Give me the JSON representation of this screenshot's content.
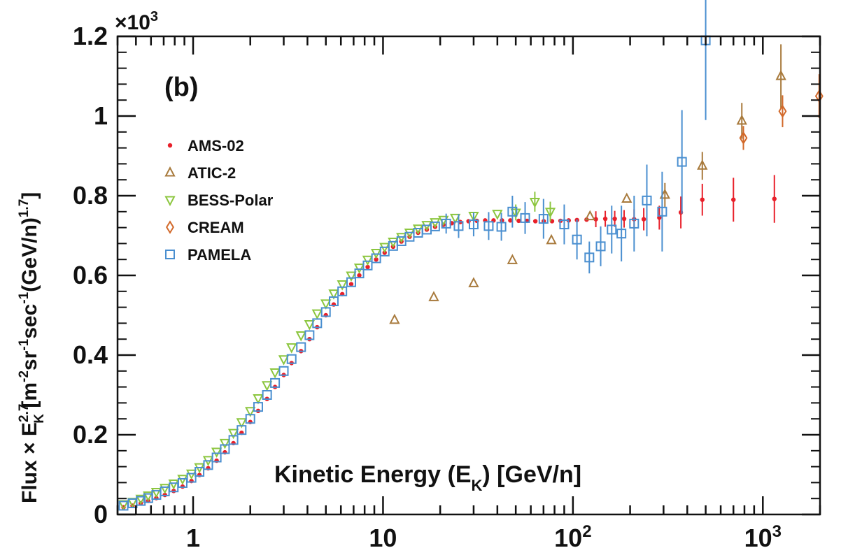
{
  "chart_data": {
    "type": "scatter",
    "panel_label": "(b)",
    "x_scale": "log",
    "xlim": [
      0.4,
      2000
    ],
    "ylim": [
      0,
      1.2
    ],
    "y_multiplier": "×10",
    "y_multiplier_exp": "3",
    "x_ticks": [
      {
        "value": 1,
        "base": "1",
        "exp": ""
      },
      {
        "value": 10,
        "base": "10",
        "exp": ""
      },
      {
        "value": 100,
        "base": "10",
        "exp": "2"
      },
      {
        "value": 1000,
        "base": "10",
        "exp": "3"
      }
    ],
    "y_ticks": [
      {
        "value": 0,
        "label": "0"
      },
      {
        "value": 0.2,
        "label": "0.2"
      },
      {
        "value": 0.4,
        "label": "0.4"
      },
      {
        "value": 0.6,
        "label": "0.6"
      },
      {
        "value": 0.8,
        "label": "0.8"
      },
      {
        "value": 1.0,
        "label": "1"
      },
      {
        "value": 1.2,
        "label": "1.2"
      }
    ],
    "xlabel": {
      "main": "Kinetic Energy (E",
      "sub": "K",
      "tail": ")  [GeV/n]"
    },
    "ylabel": {
      "pre": "Flux × E",
      "sup": "2.7",
      "sub": "K",
      "unit_a": " [m",
      "e1": "-2",
      "unit_b": "sr",
      "e2": "-1",
      "unit_c": "sec",
      "e3": "-1",
      "unit_d": "(GeV/n)",
      "e4": "1.7",
      "unit_e": "]"
    },
    "series": [
      {
        "name": "AMS-02",
        "marker": "dot",
        "color": "#e8202a",
        "points": [
          [
            0.43,
            0.018
          ],
          [
            0.48,
            0.022
          ],
          [
            0.53,
            0.028
          ],
          [
            0.58,
            0.034
          ],
          [
            0.64,
            0.041
          ],
          [
            0.71,
            0.049
          ],
          [
            0.79,
            0.059
          ],
          [
            0.88,
            0.07
          ],
          [
            0.98,
            0.084
          ],
          [
            1.08,
            0.099
          ],
          [
            1.2,
            0.116
          ],
          [
            1.33,
            0.135
          ],
          [
            1.47,
            0.156
          ],
          [
            1.63,
            0.179
          ],
          [
            1.8,
            0.205
          ],
          [
            2.0,
            0.232
          ],
          [
            2.2,
            0.26
          ],
          [
            2.45,
            0.29
          ],
          [
            2.7,
            0.32
          ],
          [
            3.0,
            0.35
          ],
          [
            3.3,
            0.38
          ],
          [
            3.7,
            0.41
          ],
          [
            4.1,
            0.44
          ],
          [
            4.5,
            0.47
          ],
          [
            5.0,
            0.5
          ],
          [
            5.5,
            0.527
          ],
          [
            6.1,
            0.553
          ],
          [
            6.8,
            0.578
          ],
          [
            7.5,
            0.6
          ],
          [
            8.3,
            0.621
          ],
          [
            9.2,
            0.64
          ],
          [
            10.2,
            0.657
          ],
          [
            11.3,
            0.672
          ],
          [
            12.5,
            0.685
          ],
          [
            13.8,
            0.697
          ],
          [
            15.3,
            0.707
          ],
          [
            17,
            0.715
          ],
          [
            18.8,
            0.722
          ],
          [
            20.8,
            0.727
          ],
          [
            23,
            0.731
          ],
          [
            25.5,
            0.734
          ],
          [
            28.2,
            0.736
          ],
          [
            31.2,
            0.737
          ],
          [
            34.5,
            0.738
          ],
          [
            38.2,
            0.738
          ],
          [
            42.3,
            0.738
          ],
          [
            46.8,
            0.738
          ],
          [
            51.8,
            0.737
          ],
          [
            57.3,
            0.737
          ],
          [
            63.4,
            0.736
          ],
          [
            70.2,
            0.736
          ],
          [
            77.6,
            0.736
          ],
          [
            86,
            0.737
          ],
          [
            95,
            0.738
          ],
          [
            105,
            0.739
          ],
          [
            118,
            0.74
          ],
          [
            132,
            0.741
          ],
          [
            148,
            0.742
          ],
          [
            166,
            0.742
          ],
          [
            186,
            0.742
          ],
          [
            210,
            0.741
          ],
          [
            236,
            0.741
          ],
          [
            285,
            0.745
          ],
          [
            370,
            0.758
          ],
          [
            480,
            0.79
          ],
          [
            700,
            0.79
          ],
          [
            1150,
            0.792
          ]
        ],
        "errors": [
          [
            132,
            0.02
          ],
          [
            148,
            0.02
          ],
          [
            166,
            0.02
          ],
          [
            186,
            0.022
          ],
          [
            210,
            0.025
          ],
          [
            236,
            0.028
          ],
          [
            285,
            0.03
          ],
          [
            370,
            0.04
          ],
          [
            480,
            0.04
          ],
          [
            700,
            0.055
          ],
          [
            1150,
            0.06
          ]
        ]
      },
      {
        "name": "ATIC-2",
        "marker": "triangle-up",
        "color": "#a87a3c",
        "points": [
          [
            11.5,
            0.488
          ],
          [
            18.5,
            0.545
          ],
          [
            30,
            0.58
          ],
          [
            48,
            0.638
          ],
          [
            77,
            0.688
          ],
          [
            123,
            0.748
          ],
          [
            192,
            0.792
          ],
          [
            305,
            0.802
          ],
          [
            480,
            0.875
          ],
          [
            775,
            0.988
          ],
          [
            1245,
            1.1
          ]
        ],
        "errors": [
          [
            305,
            0.03
          ],
          [
            480,
            0.035
          ],
          [
            775,
            0.045
          ],
          [
            1245,
            0.08
          ]
        ]
      },
      {
        "name": "BESS-Polar",
        "marker": "triangle-down",
        "color": "#8cc63f",
        "points": [
          [
            0.43,
            0.026
          ],
          [
            0.48,
            0.032
          ],
          [
            0.53,
            0.04
          ],
          [
            0.58,
            0.048
          ],
          [
            0.64,
            0.057
          ],
          [
            0.71,
            0.067
          ],
          [
            0.79,
            0.078
          ],
          [
            0.88,
            0.09
          ],
          [
            0.98,
            0.103
          ],
          [
            1.08,
            0.119
          ],
          [
            1.2,
            0.137
          ],
          [
            1.33,
            0.158
          ],
          [
            1.47,
            0.18
          ],
          [
            1.63,
            0.205
          ],
          [
            1.8,
            0.232
          ],
          [
            2.0,
            0.26
          ],
          [
            2.2,
            0.292
          ],
          [
            2.45,
            0.325
          ],
          [
            2.7,
            0.357
          ],
          [
            3.0,
            0.39
          ],
          [
            3.3,
            0.42
          ],
          [
            3.7,
            0.45
          ],
          [
            4.1,
            0.478
          ],
          [
            4.5,
            0.505
          ],
          [
            5.0,
            0.53
          ],
          [
            5.5,
            0.555
          ],
          [
            6.1,
            0.578
          ],
          [
            6.8,
            0.6
          ],
          [
            7.5,
            0.62
          ],
          [
            8.3,
            0.64
          ],
          [
            9.2,
            0.657
          ],
          [
            10.2,
            0.672
          ],
          [
            11.3,
            0.685
          ],
          [
            12.5,
            0.697
          ],
          [
            13.8,
            0.708
          ],
          [
            15.3,
            0.718
          ],
          [
            17,
            0.727
          ],
          [
            18.8,
            0.734
          ],
          [
            20.8,
            0.74
          ],
          [
            24,
            0.745
          ],
          [
            30,
            0.75
          ],
          [
            40,
            0.755
          ],
          [
            50,
            0.758
          ],
          [
            63,
            0.785
          ],
          [
            76,
            0.76
          ]
        ],
        "errors": [
          [
            50,
            0.02
          ],
          [
            63,
            0.025
          ],
          [
            76,
            0.025
          ]
        ]
      },
      {
        "name": "CREAM",
        "marker": "diamond",
        "color": "#d2692a",
        "points": [
          [
            790,
            0.945
          ],
          [
            1270,
            1.012
          ],
          [
            1980,
            1.05
          ]
        ],
        "errors": [
          [
            790,
            0.03
          ],
          [
            1270,
            0.04
          ],
          [
            1980,
            0.055
          ]
        ]
      },
      {
        "name": "PAMELA",
        "marker": "square",
        "color": "#4a8fd0",
        "points": [
          [
            0.43,
            0.022
          ],
          [
            0.48,
            0.028
          ],
          [
            0.53,
            0.034
          ],
          [
            0.58,
            0.041
          ],
          [
            0.64,
            0.049
          ],
          [
            0.71,
            0.058
          ],
          [
            0.79,
            0.068
          ],
          [
            0.88,
            0.079
          ],
          [
            0.98,
            0.092
          ],
          [
            1.08,
            0.107
          ],
          [
            1.2,
            0.124
          ],
          [
            1.33,
            0.143
          ],
          [
            1.47,
            0.164
          ],
          [
            1.63,
            0.187
          ],
          [
            1.8,
            0.212
          ],
          [
            2.0,
            0.24
          ],
          [
            2.2,
            0.27
          ],
          [
            2.45,
            0.3
          ],
          [
            2.7,
            0.33
          ],
          [
            3.0,
            0.36
          ],
          [
            3.3,
            0.39
          ],
          [
            3.7,
            0.42
          ],
          [
            4.1,
            0.45
          ],
          [
            4.5,
            0.48
          ],
          [
            5.0,
            0.508
          ],
          [
            5.5,
            0.535
          ],
          [
            6.1,
            0.56
          ],
          [
            6.8,
            0.583
          ],
          [
            7.5,
            0.605
          ],
          [
            8.3,
            0.625
          ],
          [
            9.2,
            0.643
          ],
          [
            10.2,
            0.66
          ],
          [
            11.3,
            0.674
          ],
          [
            12.5,
            0.686
          ],
          [
            13.8,
            0.697
          ],
          [
            15.3,
            0.707
          ],
          [
            17,
            0.715
          ],
          [
            18.8,
            0.723
          ],
          [
            21.5,
            0.73
          ],
          [
            25,
            0.724
          ],
          [
            30,
            0.728
          ],
          [
            36,
            0.724
          ],
          [
            42,
            0.722
          ],
          [
            48,
            0.76
          ],
          [
            56,
            0.744
          ],
          [
            70,
            0.742
          ],
          [
            90,
            0.728
          ],
          [
            105,
            0.69
          ],
          [
            122,
            0.645
          ],
          [
            140,
            0.673
          ],
          [
            160,
            0.715
          ],
          [
            180,
            0.705
          ],
          [
            210,
            0.73
          ],
          [
            245,
            0.788
          ],
          [
            295,
            0.76
          ],
          [
            375,
            0.885
          ],
          [
            500,
            1.19
          ]
        ],
        "errors": [
          [
            21.5,
            0.025
          ],
          [
            25,
            0.03
          ],
          [
            30,
            0.03
          ],
          [
            36,
            0.035
          ],
          [
            42,
            0.035
          ],
          [
            48,
            0.04
          ],
          [
            56,
            0.04
          ],
          [
            70,
            0.05
          ],
          [
            90,
            0.05
          ],
          [
            105,
            0.05
          ],
          [
            122,
            0.04
          ],
          [
            140,
            0.05
          ],
          [
            160,
            0.06
          ],
          [
            180,
            0.07
          ],
          [
            210,
            0.07
          ],
          [
            245,
            0.09
          ],
          [
            295,
            0.1
          ],
          [
            375,
            0.13
          ],
          [
            500,
            0.2
          ]
        ]
      }
    ]
  }
}
